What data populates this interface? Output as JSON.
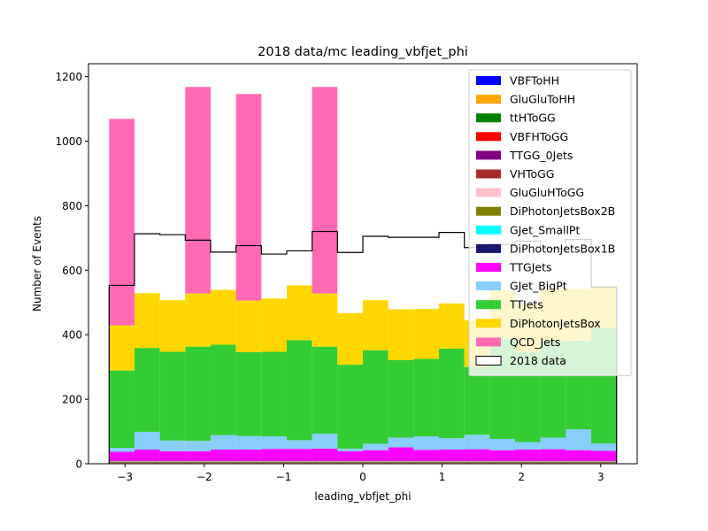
{
  "chart_data": {
    "type": "bar",
    "title": "2018 data/mc leading_vbfjet_phi",
    "xlabel": "leading_vbfjet_phi",
    "ylabel": "Number of Events",
    "xlim": [
      -3.46,
      3.46
    ],
    "ylim": [
      0,
      1240
    ],
    "xticks": [
      -3,
      -2,
      -1,
      0,
      1,
      2,
      3
    ],
    "xtick_labels": [
      "−3",
      "−2",
      "−1",
      "0",
      "1",
      "2",
      "3"
    ],
    "yticks": [
      0,
      200,
      400,
      600,
      800,
      1000,
      1200
    ],
    "ytick_labels": [
      "0",
      "200",
      "400",
      "600",
      "800",
      "1000",
      "1200"
    ],
    "bin_edges": [
      -3.2,
      -2.88,
      -2.56,
      -2.24,
      -1.92,
      -1.6,
      -1.28,
      -0.96,
      -0.64,
      -0.32,
      0.0,
      0.32,
      0.64,
      0.96,
      1.28,
      1.6,
      1.92,
      2.24,
      2.56,
      2.88,
      3.2
    ],
    "grid": false,
    "legend_position": "top-right",
    "series": [
      {
        "name": "VBFToHH",
        "color": "#0000ff",
        "values": [
          2,
          2,
          2,
          2,
          2,
          2,
          2,
          2,
          2,
          2,
          2,
          2,
          2,
          2,
          2,
          2,
          2,
          2,
          2,
          2
        ]
      },
      {
        "name": "GluGluToHH",
        "color": "#ffa500",
        "values": [
          1,
          1,
          1,
          1,
          1,
          1,
          1,
          1,
          1,
          1,
          1,
          1,
          1,
          1,
          1,
          1,
          1,
          1,
          1,
          1
        ]
      },
      {
        "name": "ttHToGG",
        "color": "#008000",
        "values": [
          1,
          1,
          1,
          1,
          1,
          1,
          1,
          1,
          1,
          1,
          1,
          1,
          1,
          1,
          1,
          1,
          1,
          1,
          1,
          1
        ]
      },
      {
        "name": "VBFHToGG",
        "color": "#ff0000",
        "values": [
          0,
          0,
          0,
          0,
          0,
          0,
          0,
          0,
          0,
          0,
          0,
          0,
          0,
          0,
          0,
          0,
          0,
          0,
          0,
          0
        ]
      },
      {
        "name": "TTGG_0Jets",
        "color": "#800080",
        "values": [
          1,
          1,
          1,
          1,
          1,
          1,
          1,
          1,
          1,
          1,
          1,
          1,
          1,
          1,
          1,
          1,
          1,
          1,
          1,
          1
        ]
      },
      {
        "name": "VHToGG",
        "color": "#a52a2a",
        "values": [
          1,
          1,
          1,
          1,
          1,
          1,
          1,
          1,
          1,
          1,
          1,
          1,
          1,
          1,
          1,
          1,
          1,
          1,
          1,
          1
        ]
      },
      {
        "name": "GluGluHToGG",
        "color": "#ffc0cb",
        "values": [
          1,
          1,
          1,
          1,
          1,
          1,
          1,
          1,
          1,
          1,
          1,
          1,
          1,
          1,
          1,
          1,
          1,
          1,
          1,
          1
        ]
      },
      {
        "name": "DiPhotonJetsBox2B",
        "color": "#808000",
        "values": [
          1,
          1,
          1,
          1,
          1,
          1,
          1,
          1,
          1,
          1,
          1,
          1,
          1,
          1,
          1,
          1,
          1,
          1,
          1,
          1
        ]
      },
      {
        "name": "GJet_SmallPt",
        "color": "#00ffff",
        "values": [
          0,
          0,
          0,
          0,
          0,
          0,
          0,
          0,
          0,
          0,
          0,
          0,
          0,
          0,
          0,
          0,
          0,
          0,
          0,
          0
        ]
      },
      {
        "name": "DiPhotonJetsBox1B",
        "color": "#191970",
        "values": [
          1,
          1,
          1,
          1,
          1,
          1,
          1,
          1,
          1,
          1,
          1,
          1,
          1,
          1,
          1,
          1,
          1,
          1,
          1,
          1
        ]
      },
      {
        "name": "TTGJets",
        "color": "#ff00ff",
        "values": [
          28,
          35,
          30,
          30,
          35,
          35,
          37,
          37,
          38,
          30,
          33,
          42,
          34,
          35,
          36,
          33,
          35,
          36,
          33,
          31
        ]
      },
      {
        "name": "GJet_BigPt",
        "color": "#87cefa",
        "values": [
          12,
          55,
          33,
          32,
          45,
          42,
          39,
          27,
          46,
          8,
          20,
          30,
          42,
          35,
          45,
          35,
          23,
          36,
          65,
          23
        ]
      },
      {
        "name": "TTJets",
        "color": "#32cd32",
        "values": [
          240,
          260,
          275,
          292,
          280,
          260,
          262,
          310,
          270,
          260,
          290,
          240,
          240,
          278,
          210,
          310,
          280,
          300,
          275,
          358
        ]
      },
      {
        "name": "DiPhotonJetsBox",
        "color": "#ffd700",
        "values": [
          140,
          170,
          160,
          165,
          170,
          160,
          165,
          170,
          165,
          160,
          155,
          158,
          155,
          140,
          145,
          150,
          150,
          160,
          160,
          130
        ]
      },
      {
        "name": "QCD_Jets",
        "color": "#ff69b4",
        "values": [
          640,
          0,
          0,
          640,
          0,
          640,
          0,
          0,
          640,
          0,
          0,
          0,
          0,
          0,
          0,
          0,
          0,
          0,
          0,
          0
        ]
      }
    ],
    "data_series": {
      "name": "2018 data",
      "values": [
        553,
        713,
        710,
        693,
        656,
        676,
        650,
        660,
        720,
        655,
        705,
        702,
        702,
        717,
        670,
        680,
        690,
        668,
        695,
        548
      ]
    }
  }
}
